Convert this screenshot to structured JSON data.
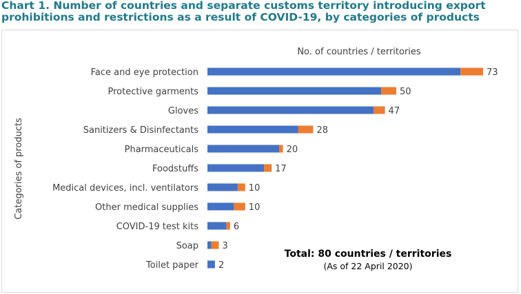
{
  "title_lines": [
    "Chart 1. Number of countries and separate customs territory introducing export",
    "prohibitions and restrictions as a result of COVID-19, by categories of products"
  ],
  "chart_data": {
    "type": "bar",
    "orientation": "horizontal",
    "stacked": true,
    "categories": [
      "Face and eye protection",
      "Protective garments",
      "Gloves",
      "Sanitizers & Disinfectants",
      "Pharmaceuticals",
      "Foodstuffs",
      "Medical devices, incl. ventilators",
      "Other medical supplies",
      "COVID-19 test kits",
      "Soap",
      "Toilet paper"
    ],
    "series": [
      {
        "values": [
          67,
          46,
          44,
          24,
          19,
          15,
          8,
          7,
          5,
          1,
          2
        ]
      },
      {
        "values": [
          6,
          4,
          3,
          4,
          1,
          2,
          2,
          3,
          1,
          2,
          0
        ]
      }
    ],
    "totals": [
      "73",
      "50",
      "47",
      "28",
      "20",
      "17",
      "10",
      "10",
      "6",
      "3",
      "2"
    ],
    "colors": [
      "#4472c4",
      "#ed7d31"
    ],
    "xlabel": "No. of countries / territories",
    "ylabel": "Categories of products",
    "xlim": [
      0,
      80
    ],
    "grid": false,
    "annotation": {
      "main": "Total: 80 countries / territories",
      "sub": "(As of 22 April 2020)"
    }
  }
}
